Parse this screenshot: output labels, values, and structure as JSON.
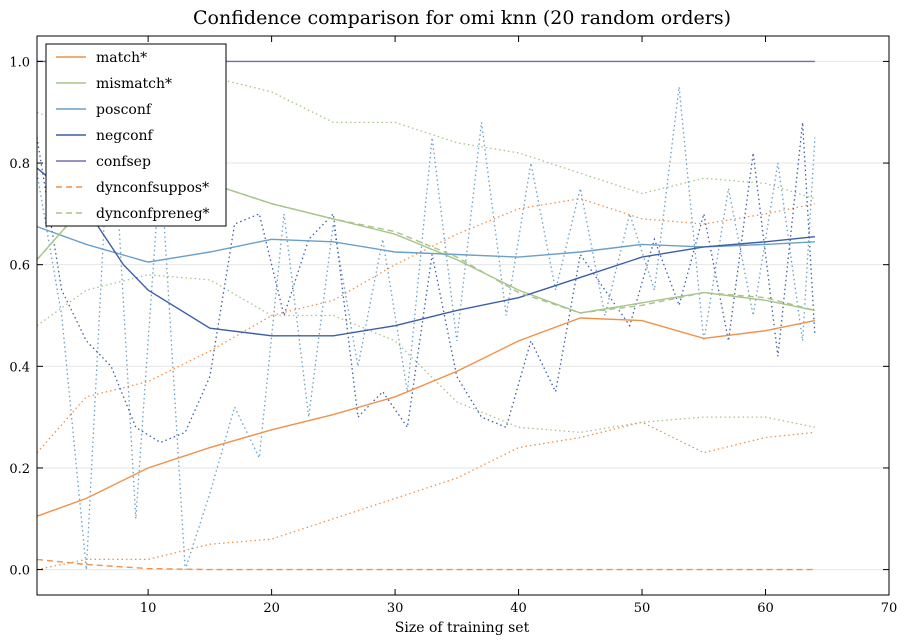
{
  "chart_data": {
    "type": "line",
    "title": "Confidence comparison for omi knn (20 random orders)",
    "xlabel": "Size of training set",
    "ylabel": "",
    "xlim": [
      1,
      70
    ],
    "ylim": [
      -0.05,
      1.05
    ],
    "xticks": [
      10,
      20,
      30,
      40,
      50,
      60,
      70
    ],
    "yticks": [
      0.0,
      0.2,
      0.4,
      0.6,
      0.8,
      1.0
    ],
    "xtick_labels": [
      "10",
      "20",
      "30",
      "40",
      "50",
      "60",
      "70"
    ],
    "ytick_labels": [
      "0.0",
      "0.2",
      "0.4",
      "0.6",
      "0.8",
      "1.0"
    ],
    "grid": "horizontal",
    "legend_position": "top-left",
    "series": [
      {
        "name": "match*",
        "color": "#f0914a",
        "style": "solid",
        "x": [
          1,
          5,
          10,
          15,
          20,
          25,
          30,
          35,
          40,
          45,
          50,
          55,
          60,
          64
        ],
        "y": [
          0.105,
          0.14,
          0.2,
          0.24,
          0.275,
          0.305,
          0.34,
          0.39,
          0.45,
          0.495,
          0.49,
          0.455,
          0.47,
          0.49
        ]
      },
      {
        "name": "mismatch*",
        "color": "#a8c48a",
        "style": "solid",
        "x": [
          1,
          5,
          10,
          15,
          20,
          25,
          30,
          35,
          40,
          45,
          50,
          55,
          60,
          64
        ],
        "y": [
          0.61,
          0.72,
          0.78,
          0.76,
          0.72,
          0.69,
          0.66,
          0.61,
          0.55,
          0.505,
          0.525,
          0.545,
          0.53,
          0.51
        ]
      },
      {
        "name": "posconf",
        "color": "#6aa0c8",
        "style": "solid",
        "x": [
          1,
          5,
          10,
          15,
          20,
          25,
          30,
          35,
          40,
          45,
          50,
          55,
          60,
          64
        ],
        "y": [
          0.675,
          0.64,
          0.605,
          0.625,
          0.65,
          0.645,
          0.625,
          0.62,
          0.615,
          0.625,
          0.64,
          0.635,
          0.64,
          0.645
        ]
      },
      {
        "name": "negconf",
        "color": "#3e5ea8",
        "style": "solid",
        "x": [
          1,
          5,
          8,
          10,
          15,
          20,
          25,
          30,
          35,
          40,
          45,
          50,
          55,
          60,
          64
        ],
        "y": [
          0.79,
          0.71,
          0.6,
          0.55,
          0.475,
          0.46,
          0.46,
          0.48,
          0.51,
          0.535,
          0.575,
          0.615,
          0.635,
          0.645,
          0.655
        ]
      },
      {
        "name": "confsep",
        "color": "#7a6bb0",
        "style": "solid",
        "x": [
          1,
          64
        ],
        "y": [
          1.0,
          1.0
        ]
      },
      {
        "name": "dynconfsuppos*",
        "color": "#f0914a",
        "style": "dashed",
        "x": [
          1,
          5,
          10,
          15,
          64
        ],
        "y": [
          0.02,
          0.01,
          0.002,
          0.0,
          0.0
        ]
      },
      {
        "name": "dynconfpreneg*",
        "color": "#a8c48a",
        "style": "dashed",
        "x": [
          1,
          5,
          10,
          15,
          20,
          25,
          30,
          35,
          40,
          45,
          50,
          55,
          60,
          64
        ],
        "y": [
          0.61,
          0.72,
          0.78,
          0.76,
          0.72,
          0.69,
          0.665,
          0.615,
          0.545,
          0.505,
          0.52,
          0.545,
          0.535,
          0.51
        ]
      }
    ],
    "bands": [
      {
        "color": "#f0914a",
        "x": [
          1,
          5,
          10,
          15,
          20,
          25,
          30,
          35,
          40,
          45,
          50,
          55,
          60,
          64
        ],
        "upper": [
          0.23,
          0.34,
          0.37,
          0.43,
          0.5,
          0.53,
          0.6,
          0.66,
          0.71,
          0.73,
          0.69,
          0.68,
          0.7,
          0.72
        ],
        "lower": [
          0.0,
          0.02,
          0.02,
          0.05,
          0.06,
          0.1,
          0.14,
          0.18,
          0.24,
          0.26,
          0.29,
          0.23,
          0.26,
          0.27
        ]
      },
      {
        "color": "#a8c48a",
        "x": [
          1,
          5,
          10,
          15,
          20,
          25,
          30,
          35,
          40,
          45,
          50,
          55,
          60,
          64
        ],
        "upper": [
          0.9,
          0.86,
          0.99,
          0.97,
          0.94,
          0.88,
          0.88,
          0.84,
          0.82,
          0.78,
          0.74,
          0.77,
          0.76,
          0.73
        ],
        "lower": [
          0.48,
          0.55,
          0.58,
          0.57,
          0.5,
          0.5,
          0.45,
          0.33,
          0.28,
          0.27,
          0.29,
          0.3,
          0.3,
          0.28
        ]
      }
    ],
    "noisy": [
      {
        "color": "#6aa0c8",
        "x": [
          1,
          3,
          5,
          7,
          9,
          11,
          13,
          15,
          17,
          19,
          21,
          23,
          25,
          27,
          29,
          31,
          33,
          35,
          37,
          39,
          41,
          43,
          45,
          47,
          49,
          51,
          53,
          55,
          57,
          59,
          61,
          63,
          64
        ],
        "y": [
          0.78,
          0.5,
          0.0,
          0.95,
          0.1,
          0.8,
          0.0,
          0.15,
          0.32,
          0.22,
          0.7,
          0.3,
          0.68,
          0.4,
          0.65,
          0.35,
          0.85,
          0.45,
          0.88,
          0.5,
          0.8,
          0.55,
          0.75,
          0.5,
          0.7,
          0.55,
          0.95,
          0.45,
          0.75,
          0.5,
          0.8,
          0.45,
          0.85
        ]
      },
      {
        "color": "#3e5ea8",
        "x": [
          1,
          3,
          5,
          7,
          9,
          11,
          13,
          15,
          17,
          19,
          21,
          23,
          25,
          27,
          29,
          31,
          33,
          35,
          37,
          39,
          41,
          43,
          45,
          47,
          49,
          51,
          53,
          55,
          57,
          59,
          61,
          63,
          64
        ],
        "y": [
          0.85,
          0.55,
          0.45,
          0.4,
          0.28,
          0.25,
          0.27,
          0.38,
          0.68,
          0.7,
          0.5,
          0.65,
          0.7,
          0.3,
          0.35,
          0.28,
          0.62,
          0.38,
          0.3,
          0.28,
          0.45,
          0.35,
          0.62,
          0.55,
          0.48,
          0.65,
          0.52,
          0.7,
          0.45,
          0.82,
          0.42,
          0.88,
          0.46
        ]
      }
    ]
  }
}
